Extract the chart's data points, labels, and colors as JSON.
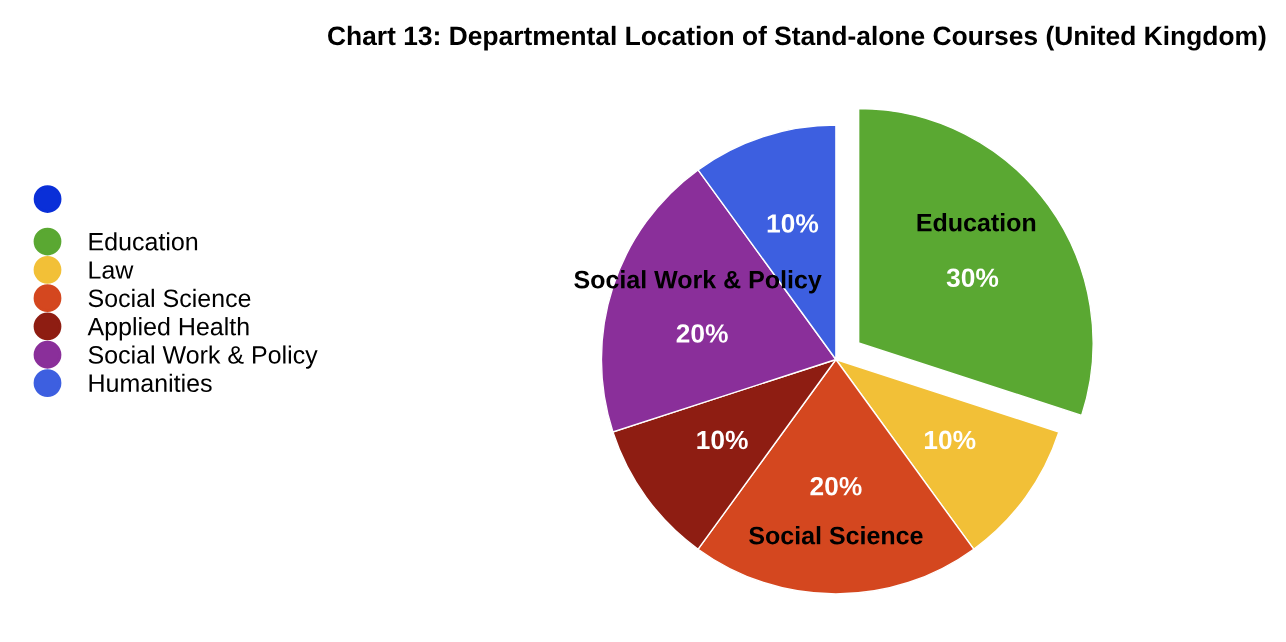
{
  "chart_data": {
    "type": "pie",
    "title": "Chart 13: Departmental Location of Stand-alone Courses (United Kingdom)",
    "categories": [
      "Education",
      "Law",
      "Social Science",
      "Applied Health",
      "Social Work & Policy",
      "Humanities"
    ],
    "values": [
      30,
      10,
      20,
      10,
      20,
      10
    ],
    "colors": [
      "#5aa832",
      "#f2c037",
      "#d4471f",
      "#8e1d12",
      "#8a2f9a",
      "#3d5fe0"
    ],
    "value_labels": [
      "30%",
      "10%",
      "20%",
      "10%",
      "20%",
      "10%"
    ],
    "annotations": [
      {
        "text": "Education",
        "x": "Education"
      },
      {
        "text": "Social Science",
        "x": "Social Science"
      },
      {
        "text": "Social Work & Policy",
        "x": "Social Work & Policy"
      }
    ],
    "legend": "left"
  }
}
